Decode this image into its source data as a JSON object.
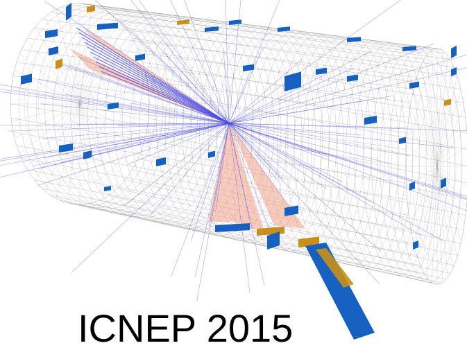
{
  "caption": {
    "text": "ICNEP 2015"
  },
  "colors": {
    "grid": "#8c8c8c",
    "track": "#4a4ae0",
    "jet_cone": "#f2a08a",
    "calo_blue": "#1560c0",
    "calo_gold": "#c8901a",
    "background": "#ffffff"
  },
  "icons": [
    "detector-barrel",
    "particle-tracks",
    "jet-cones",
    "calorimeter-towers"
  ]
}
